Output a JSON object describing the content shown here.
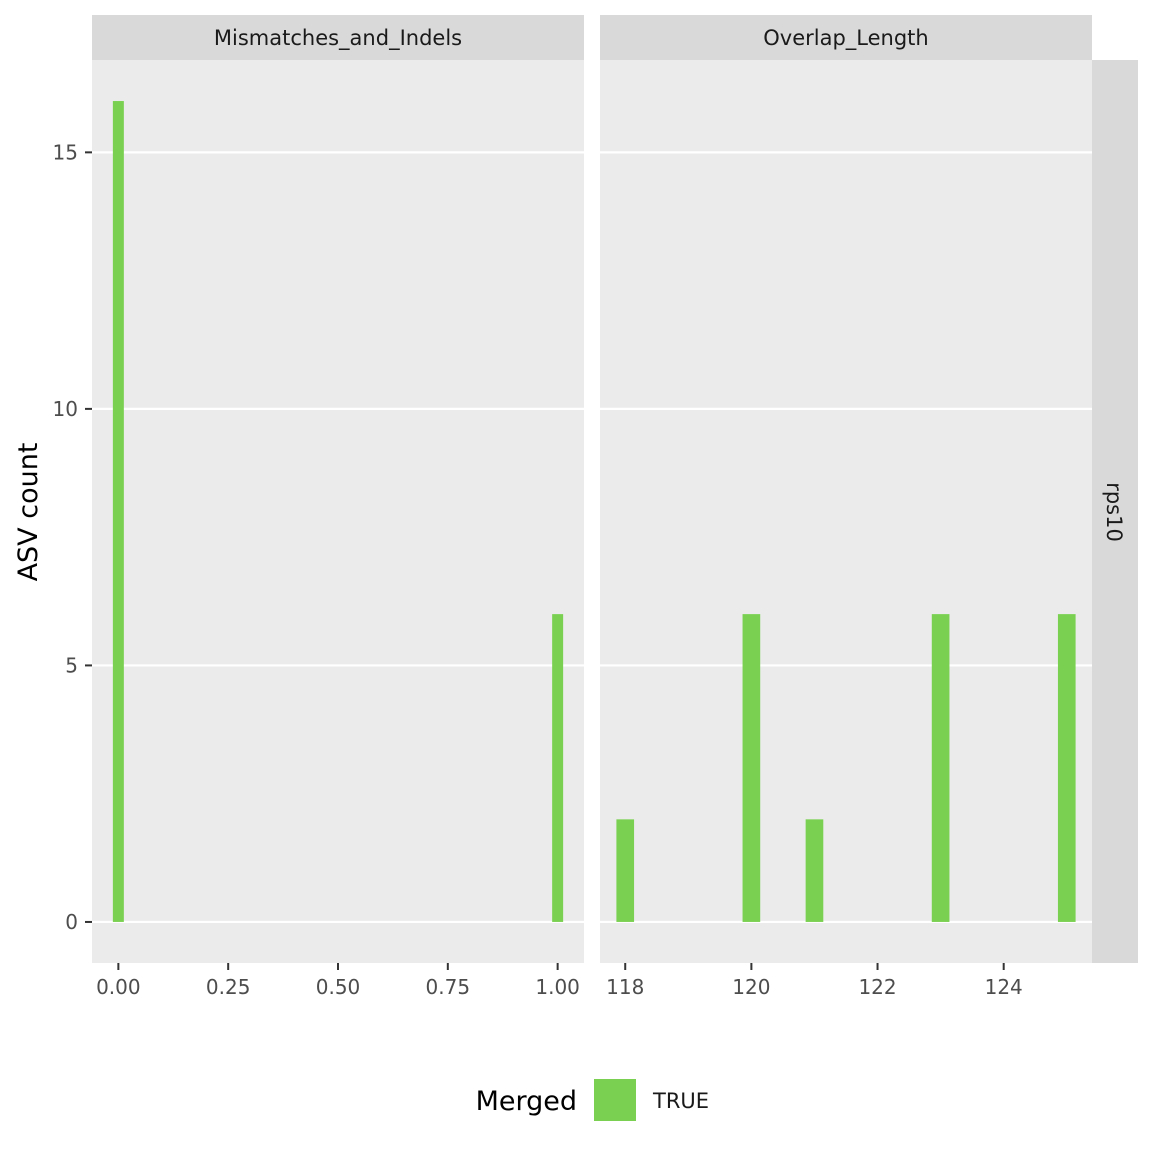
{
  "chart_data": {
    "type": "bar",
    "ylabel": "ASV count",
    "ylim": [
      -0.8,
      16.8
    ],
    "yticks": [
      0,
      5,
      10,
      15
    ],
    "row_strip": "rps10",
    "fill_color": "#7AD151",
    "legend": {
      "title": "Merged",
      "position": "bottom",
      "entries": [
        {
          "label": "TRUE",
          "color": "#7AD151"
        }
      ]
    },
    "grid": true,
    "panels": [
      {
        "strip": "Mismatches_and_Indels",
        "xlim": [
          -0.06,
          1.06
        ],
        "xticks": [
          0.0,
          0.25,
          0.5,
          0.75,
          1.0
        ],
        "xtick_labels": [
          "0.00",
          "0.25",
          "0.50",
          "0.75",
          "1.00"
        ],
        "bar_width": 0.025,
        "series": [
          {
            "name": "TRUE",
            "x": [
              0.0,
              1.0
            ],
            "values": [
              16,
              6
            ]
          }
        ]
      },
      {
        "strip": "Overlap_Length",
        "xlim": [
          117.6,
          125.4
        ],
        "xticks": [
          118,
          120,
          122,
          124
        ],
        "xtick_labels": [
          "118",
          "120",
          "122",
          "124"
        ],
        "bar_width": 0.28,
        "series": [
          {
            "name": "TRUE",
            "x": [
              118,
              120,
              121,
              123,
              125
            ],
            "values": [
              2,
              6,
              2,
              6,
              6
            ]
          }
        ]
      }
    ]
  }
}
